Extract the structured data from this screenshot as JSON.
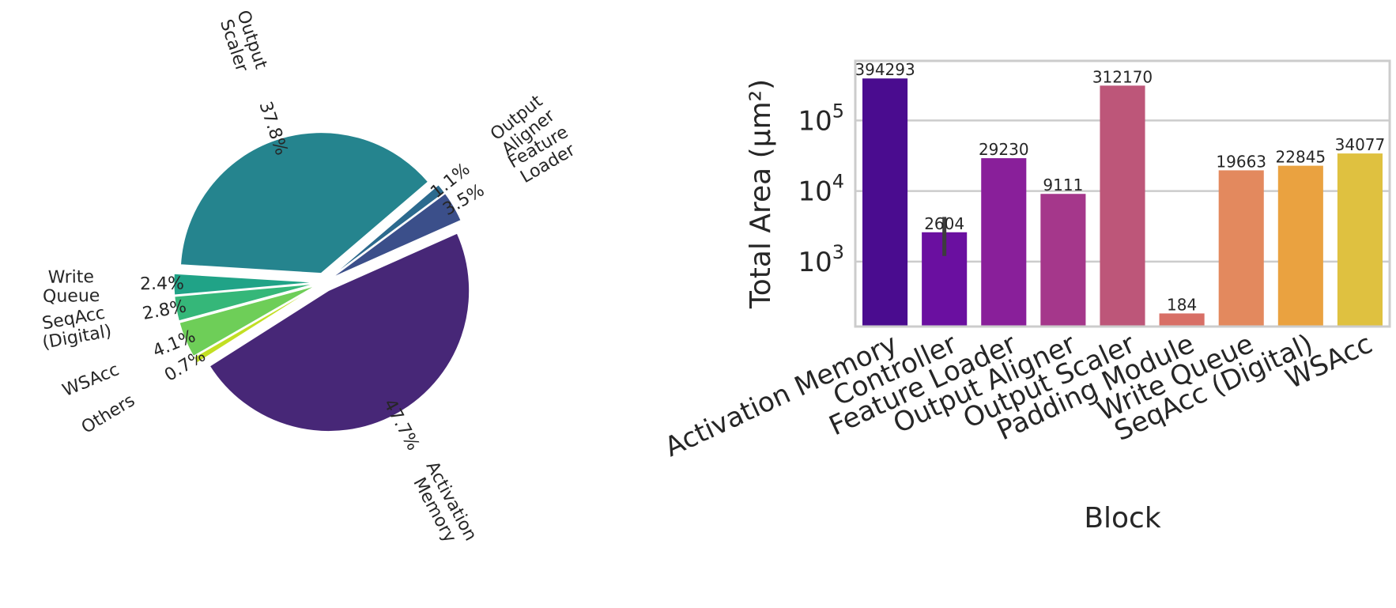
{
  "chart_data": [
    {
      "type": "pie",
      "slices": [
        {
          "label": "Activation\nMemory",
          "percent": 47.7,
          "pct_label": "47.7%",
          "color": "#472777"
        },
        {
          "label": "Others",
          "percent": 0.7,
          "pct_label": "0.7%",
          "color": "#c2df23"
        },
        {
          "label": "WSAcc",
          "percent": 4.1,
          "pct_label": "4.1%",
          "color": "#6ece58"
        },
        {
          "label": "SeqAcc\n(Digital)",
          "percent": 2.8,
          "pct_label": "2.8%",
          "color": "#35b779"
        },
        {
          "label": "Write\nQueue",
          "percent": 2.4,
          "pct_label": "2.4%",
          "color": "#20a387"
        },
        {
          "label": "Output\nScaler",
          "percent": 37.8,
          "pct_label": "37.8%",
          "color": "#25848e"
        },
        {
          "label": "Output\nAligner",
          "percent": 1.1,
          "pct_label": "1.1%",
          "color": "#2c6a8e"
        },
        {
          "label": "Feature\nLoader",
          "percent": 3.5,
          "pct_label": "3.5%",
          "color": "#3b4f8a"
        }
      ]
    },
    {
      "type": "bar",
      "xlabel": "Block",
      "ylabel": "Total Area (µm²)",
      "yscale": "log",
      "ylim": [
        120,
        700000
      ],
      "yticks": [
        {
          "value": 1000,
          "base": "10",
          "exp": "3"
        },
        {
          "value": 10000,
          "base": "10",
          "exp": "4"
        },
        {
          "value": 100000,
          "base": "10",
          "exp": "5"
        }
      ],
      "grid": true,
      "categories": [
        "Activation Memory",
        "Controller",
        "Feature Loader",
        "Output Aligner",
        "Output Scaler",
        "Padding Module",
        "Write Queue",
        "SeqAcc (Digital)",
        "WSAcc"
      ],
      "values": [
        394293,
        2604,
        29230,
        9111,
        312170,
        184,
        19663,
        22845,
        34077
      ],
      "value_labels": [
        "394293",
        "2604",
        "29230",
        "9111",
        "312170",
        "184",
        "19663",
        "22845",
        "34077"
      ],
      "error_bars": [
        null,
        [
          1200,
          4300
        ],
        null,
        null,
        null,
        null,
        null,
        null,
        null
      ],
      "colors": [
        "#4a0c8f",
        "#6a0fa0",
        "#891f9a",
        "#a5378b",
        "#bd5679",
        "#d86f66",
        "#e3895e",
        "#eaa240",
        "#dfc140"
      ]
    }
  ]
}
